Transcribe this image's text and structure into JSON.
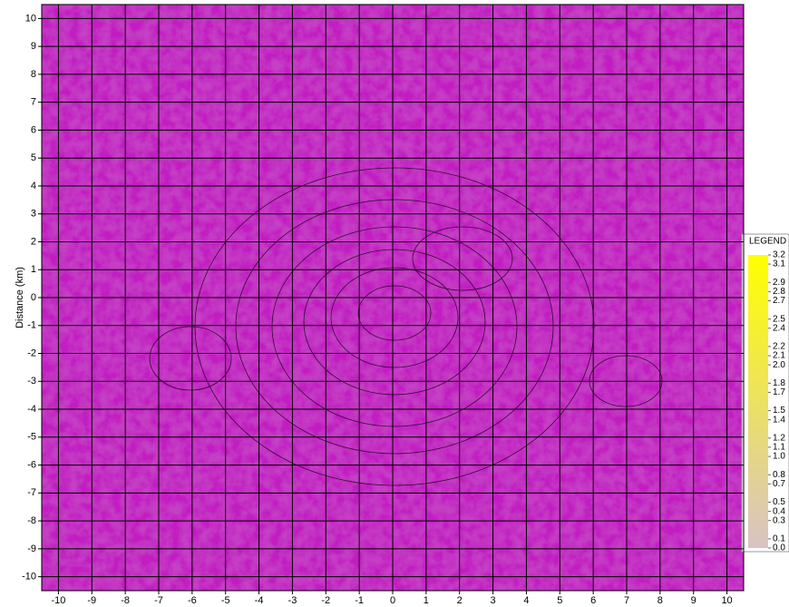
{
  "chart_data": {
    "type": "contour-map",
    "ylabel": "Distance (km)",
    "xlim": [
      -10.5,
      10.5
    ],
    "ylim": [
      -10.5,
      10.5
    ],
    "xticks": [
      -10,
      -9,
      -8,
      -7,
      -6,
      -5,
      -4,
      -3,
      -2,
      -1,
      0,
      1,
      2,
      3,
      4,
      5,
      6,
      7,
      8,
      9,
      10
    ],
    "yticks": [
      10,
      9,
      8,
      7,
      6,
      5,
      4,
      3,
      2,
      1,
      0,
      -1,
      -2,
      -3,
      -4,
      -5,
      -6,
      -7,
      -8,
      -9,
      -10
    ],
    "grid": true,
    "legend": {
      "title": "LEGEND",
      "colors": [
        "#d9c3c4",
        "#ffff00"
      ],
      "lim": [
        0,
        3.2
      ],
      "ticks": [
        3.2,
        3.1,
        2.9,
        2.8,
        2.7,
        2.5,
        2.4,
        2.2,
        2.1,
        {
          "value": 2,
          "label": "2.0"
        },
        1.8,
        1.7,
        1.5,
        1.4,
        1.2,
        1.1,
        {
          "value": 1,
          "label": "1.0"
        },
        0.8,
        0.7,
        0.5,
        0.4,
        0.3,
        0.1,
        {
          "value": 0,
          "label": "0.0"
        }
      ]
    }
  }
}
